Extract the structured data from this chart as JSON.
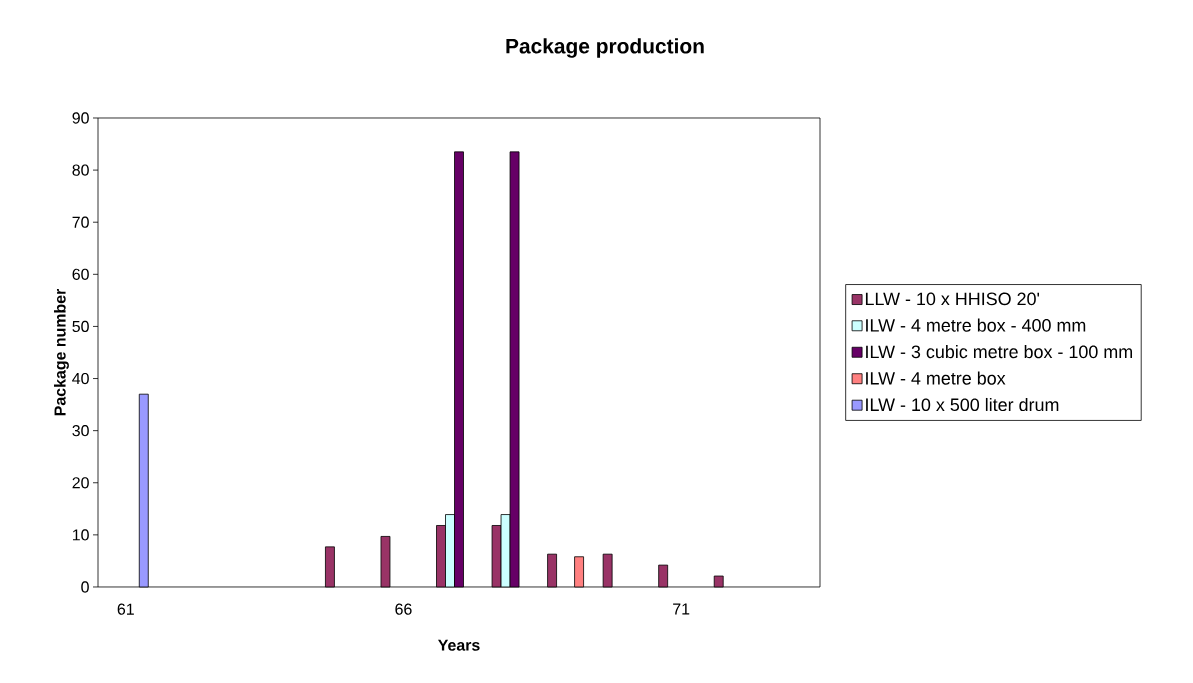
{
  "chart_data": {
    "type": "bar",
    "title": "Package production",
    "xlabel": "Years",
    "ylabel": "Package number",
    "categories": [
      "61",
      null,
      null,
      null,
      null,
      "66",
      null,
      null,
      null,
      null,
      "71",
      null,
      null
    ],
    "series": [
      {
        "name": "LLW - 10 x HHISO 20'",
        "color": "#993366",
        "values": [
          null,
          null,
          null,
          null,
          7.7,
          9.7,
          11.8,
          11.8,
          6.3,
          6.3,
          4.2,
          2.1,
          null
        ]
      },
      {
        "name": "ILW - 4 metre box - 400 mm",
        "color": "#ccffff",
        "values": [
          null,
          null,
          null,
          null,
          null,
          null,
          13.9,
          13.9,
          null,
          null,
          null,
          null,
          null
        ]
      },
      {
        "name": "ILW - 3 cubic metre box - 100 mm",
        "color": "#660066",
        "values": [
          null,
          null,
          null,
          null,
          null,
          null,
          83.5,
          83.5,
          null,
          null,
          null,
          null,
          null
        ]
      },
      {
        "name": "ILW - 4 metre box",
        "color": "#ff8080",
        "values": [
          null,
          null,
          null,
          null,
          null,
          null,
          null,
          null,
          5.8,
          null,
          null,
          null,
          null
        ]
      },
      {
        "name": "ILW - 10 x 500 liter drum",
        "color": "#9999ff",
        "values": [
          37,
          null,
          null,
          null,
          null,
          null,
          null,
          null,
          null,
          null,
          null,
          null,
          null
        ]
      }
    ],
    "ylim": [
      0,
      90
    ],
    "yticks": [
      0,
      10,
      20,
      30,
      40,
      50,
      60,
      70,
      80,
      90
    ],
    "legend": "right"
  }
}
